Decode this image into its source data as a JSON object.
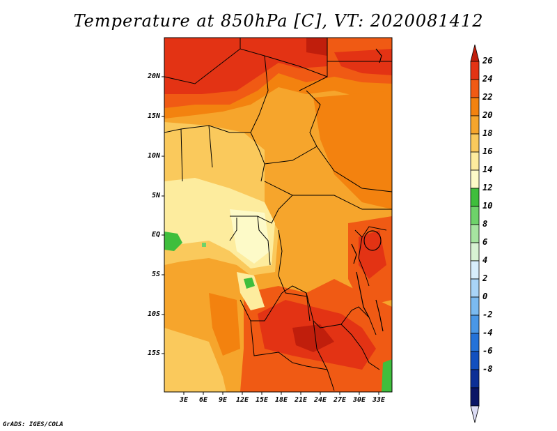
{
  "title": "Temperature at 850hPa [C], VT: 2020081412",
  "credit": "GrADS: IGES/COLA",
  "lat_labels": [
    "20N",
    "15N",
    "10N",
    "5N",
    "EQ",
    "5S",
    "10S",
    "15S"
  ],
  "lon_labels": [
    "3E",
    "6E",
    "9E",
    "12E",
    "15E",
    "18E",
    "21E",
    "24E",
    "27E",
    "30E",
    "33E"
  ],
  "colorbar": {
    "labels": [
      "26",
      "24",
      "22",
      "20",
      "18",
      "16",
      "14",
      "12",
      "10",
      "8",
      "6",
      "4",
      "2",
      "0",
      "-2",
      "-4",
      "-6",
      "-8"
    ],
    "colors": [
      "#c01e0c",
      "#e33314",
      "#f05a14",
      "#f3820f",
      "#f6a52c",
      "#fac95c",
      "#fdec9e",
      "#fdfac8",
      "#3fbe3c",
      "#6ed26a",
      "#a6e4a0",
      "#d7f2d3",
      "#d8eefc",
      "#a9d4f7",
      "#7bbaf0",
      "#4a97e6",
      "#2472d8",
      "#1250bf",
      "#0c2f96",
      "#0a1566",
      "#dcdcf4"
    ]
  }
}
